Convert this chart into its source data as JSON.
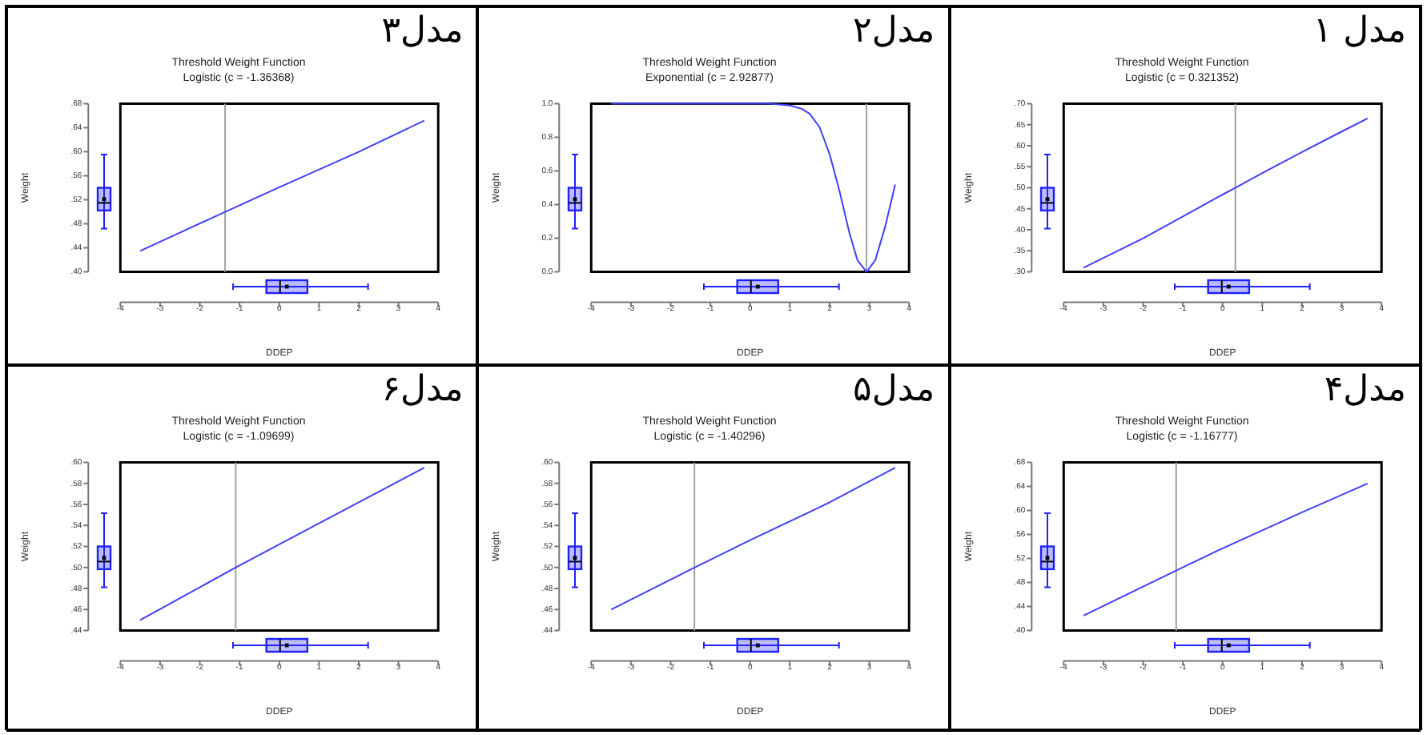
{
  "chart_data": [
    {
      "type": "line",
      "title": "Threshold Weight Function",
      "subtitle": "Logistic (c = 0.321352)",
      "xlabel": "DDEP",
      "ylabel": "Weight",
      "annotations": [
        "مدل ۱"
      ],
      "xlim": [
        -4,
        4
      ],
      "xticks": [
        -4,
        -3,
        -2,
        -1,
        0,
        1,
        2,
        3,
        4
      ],
      "ylim": [
        0.3,
        0.7
      ],
      "yticks": [
        {
          "value": 0.3,
          "label": ".30"
        },
        {
          "value": 0.35,
          "label": ".35"
        },
        {
          "value": 0.4,
          "label": ".40"
        },
        {
          "value": 0.45,
          "label": ".45"
        },
        {
          "value": 0.5,
          "label": ".50"
        },
        {
          "value": 0.55,
          "label": ".55"
        },
        {
          "value": 0.6,
          "label": ".60"
        },
        {
          "value": 0.65,
          "label": ".65"
        },
        {
          "value": 0.7,
          "label": ".70"
        }
      ],
      "ref_lines": [
        {
          "axis": "x",
          "value": 0.321352,
          "color": "#a0a0a0"
        }
      ],
      "series": [
        {
          "color": "#4040ff",
          "x": [
            -3.5,
            -2,
            -1,
            0,
            0.32,
            1,
            2,
            3,
            3.65
          ],
          "values": [
            0.31,
            0.38,
            0.432,
            0.484,
            0.5,
            0.535,
            0.585,
            0.634,
            0.665
          ]
        }
      ]
    },
    {
      "type": "line",
      "title": "Threshold Weight Function",
      "subtitle": "Exponential (c = 2.92877)",
      "xlabel": "DDEP",
      "ylabel": "Weight",
      "annotations": [
        "مدل۲"
      ],
      "xlim": [
        -4,
        4
      ],
      "xticks": [
        -4,
        -3,
        -2,
        -1,
        0,
        1,
        2,
        3,
        4
      ],
      "ylim": [
        0,
        1
      ],
      "yticks": [
        {
          "value": 0,
          "label": "0.0"
        },
        {
          "value": 0.2,
          "label": "0.2"
        },
        {
          "value": 0.4,
          "label": "0.4"
        },
        {
          "value": 0.6,
          "label": "0.6"
        },
        {
          "value": 0.8,
          "label": "0.8"
        },
        {
          "value": 1,
          "label": "1.0"
        }
      ],
      "ref_lines": [
        {
          "axis": "x",
          "value": 2.92877,
          "color": "#a0a0a0"
        }
      ],
      "series": [
        {
          "color": "#4040ff",
          "x": [
            -3.5,
            0,
            0.5,
            1,
            1.3,
            1.5,
            1.75,
            2,
            2.25,
            2.5,
            2.7,
            2.93,
            3.15,
            3.4,
            3.65
          ],
          "values": [
            1,
            1,
            1,
            0.99,
            0.97,
            0.94,
            0.86,
            0.7,
            0.48,
            0.23,
            0.07,
            0,
            0.07,
            0.27,
            0.52
          ]
        }
      ]
    },
    {
      "type": "line",
      "title": "Threshold Weight Function",
      "subtitle": "Logistic (c = -1.36368)",
      "xlabel": "DDEP",
      "ylabel": "Weight",
      "annotations": [
        "مدل۳"
      ],
      "xlim": [
        -4,
        4
      ],
      "xticks": [
        -4,
        -3,
        -2,
        -1,
        0,
        1,
        2,
        3,
        4
      ],
      "ylim": [
        0.4,
        0.68
      ],
      "yticks": [
        {
          "value": 0.4,
          "label": ".40"
        },
        {
          "value": 0.44,
          "label": ".44"
        },
        {
          "value": 0.48,
          "label": ".48"
        },
        {
          "value": 0.52,
          "label": ".52"
        },
        {
          "value": 0.56,
          "label": ".56"
        },
        {
          "value": 0.6,
          "label": ".60"
        },
        {
          "value": 0.64,
          "label": ".64"
        },
        {
          "value": 0.68,
          "label": ".68"
        }
      ],
      "ref_lines": [
        {
          "axis": "x",
          "value": -1.36368,
          "color": "#a0a0a0"
        }
      ],
      "series": [
        {
          "color": "#4040ff",
          "x": [
            -3.5,
            -1.36,
            0,
            2,
            3.65
          ],
          "values": [
            0.435,
            0.5,
            0.541,
            0.6,
            0.652
          ]
        }
      ]
    },
    {
      "type": "line",
      "title": "Threshold Weight Function",
      "subtitle": "Logistic (c = -1.16777)",
      "xlabel": "DDEP",
      "ylabel": "Weight",
      "annotations": [
        "مدل۴"
      ],
      "xlim": [
        -4,
        4
      ],
      "xticks": [
        -4,
        -3,
        -2,
        -1,
        0,
        1,
        2,
        3,
        4
      ],
      "ylim": [
        0.4,
        0.68
      ],
      "yticks": [
        {
          "value": 0.4,
          "label": ".40"
        },
        {
          "value": 0.44,
          "label": ".44"
        },
        {
          "value": 0.48,
          "label": ".48"
        },
        {
          "value": 0.52,
          "label": ".52"
        },
        {
          "value": 0.56,
          "label": ".56"
        },
        {
          "value": 0.6,
          "label": ".60"
        },
        {
          "value": 0.64,
          "label": ".64"
        },
        {
          "value": 0.68,
          "label": ".68"
        }
      ],
      "ref_lines": [
        {
          "axis": "x",
          "value": -1.16777,
          "color": "#a0a0a0"
        }
      ],
      "series": [
        {
          "color": "#4040ff",
          "x": [
            -3.5,
            -1.17,
            0,
            2,
            3.65
          ],
          "values": [
            0.425,
            0.5,
            0.537,
            0.597,
            0.645
          ]
        }
      ]
    },
    {
      "type": "line",
      "title": "Threshold Weight Function",
      "subtitle": "Logistic (c = -1.40296)",
      "xlabel": "DDEP",
      "ylabel": "Weight",
      "annotations": [
        "مدل۵"
      ],
      "xlim": [
        -4,
        4
      ],
      "xticks": [
        -4,
        -3,
        -2,
        -1,
        0,
        1,
        2,
        3,
        4
      ],
      "ylim": [
        0.44,
        0.6
      ],
      "yticks": [
        {
          "value": 0.44,
          "label": ".44"
        },
        {
          "value": 0.46,
          "label": ".46"
        },
        {
          "value": 0.48,
          "label": ".48"
        },
        {
          "value": 0.5,
          "label": ".50"
        },
        {
          "value": 0.52,
          "label": ".52"
        },
        {
          "value": 0.54,
          "label": ".54"
        },
        {
          "value": 0.56,
          "label": ".56"
        },
        {
          "value": 0.58,
          "label": ".58"
        },
        {
          "value": 0.6,
          "label": ".60"
        }
      ],
      "ref_lines": [
        {
          "axis": "x",
          "value": -1.40296,
          "color": "#a0a0a0"
        }
      ],
      "series": [
        {
          "color": "#4040ff",
          "x": [
            -3.5,
            -1.4,
            0,
            2,
            3.65
          ],
          "values": [
            0.46,
            0.5,
            0.526,
            0.562,
            0.595
          ]
        }
      ]
    },
    {
      "type": "line",
      "title": "Threshold Weight Function",
      "subtitle": "Logistic (c = -1.09699)",
      "xlabel": "DDEP",
      "ylabel": "Weight",
      "annotations": [
        "مدل۶"
      ],
      "xlim": [
        -4,
        4
      ],
      "xticks": [
        -4,
        -3,
        -2,
        -1,
        0,
        1,
        2,
        3,
        4
      ],
      "ylim": [
        0.44,
        0.6
      ],
      "yticks": [
        {
          "value": 0.44,
          "label": ".44"
        },
        {
          "value": 0.46,
          "label": ".46"
        },
        {
          "value": 0.48,
          "label": ".48"
        },
        {
          "value": 0.5,
          "label": ".50"
        },
        {
          "value": 0.52,
          "label": ".52"
        },
        {
          "value": 0.54,
          "label": ".54"
        },
        {
          "value": 0.56,
          "label": ".56"
        },
        {
          "value": 0.58,
          "label": ".58"
        },
        {
          "value": 0.6,
          "label": ".60"
        }
      ],
      "ref_lines": [
        {
          "axis": "x",
          "value": -1.09699,
          "color": "#a0a0a0"
        }
      ],
      "series": [
        {
          "color": "#4040ff",
          "x": [
            -3.5,
            -1.1,
            0,
            2,
            3.65
          ],
          "values": [
            0.45,
            0.5,
            0.522,
            0.562,
            0.595
          ]
        }
      ]
    }
  ]
}
